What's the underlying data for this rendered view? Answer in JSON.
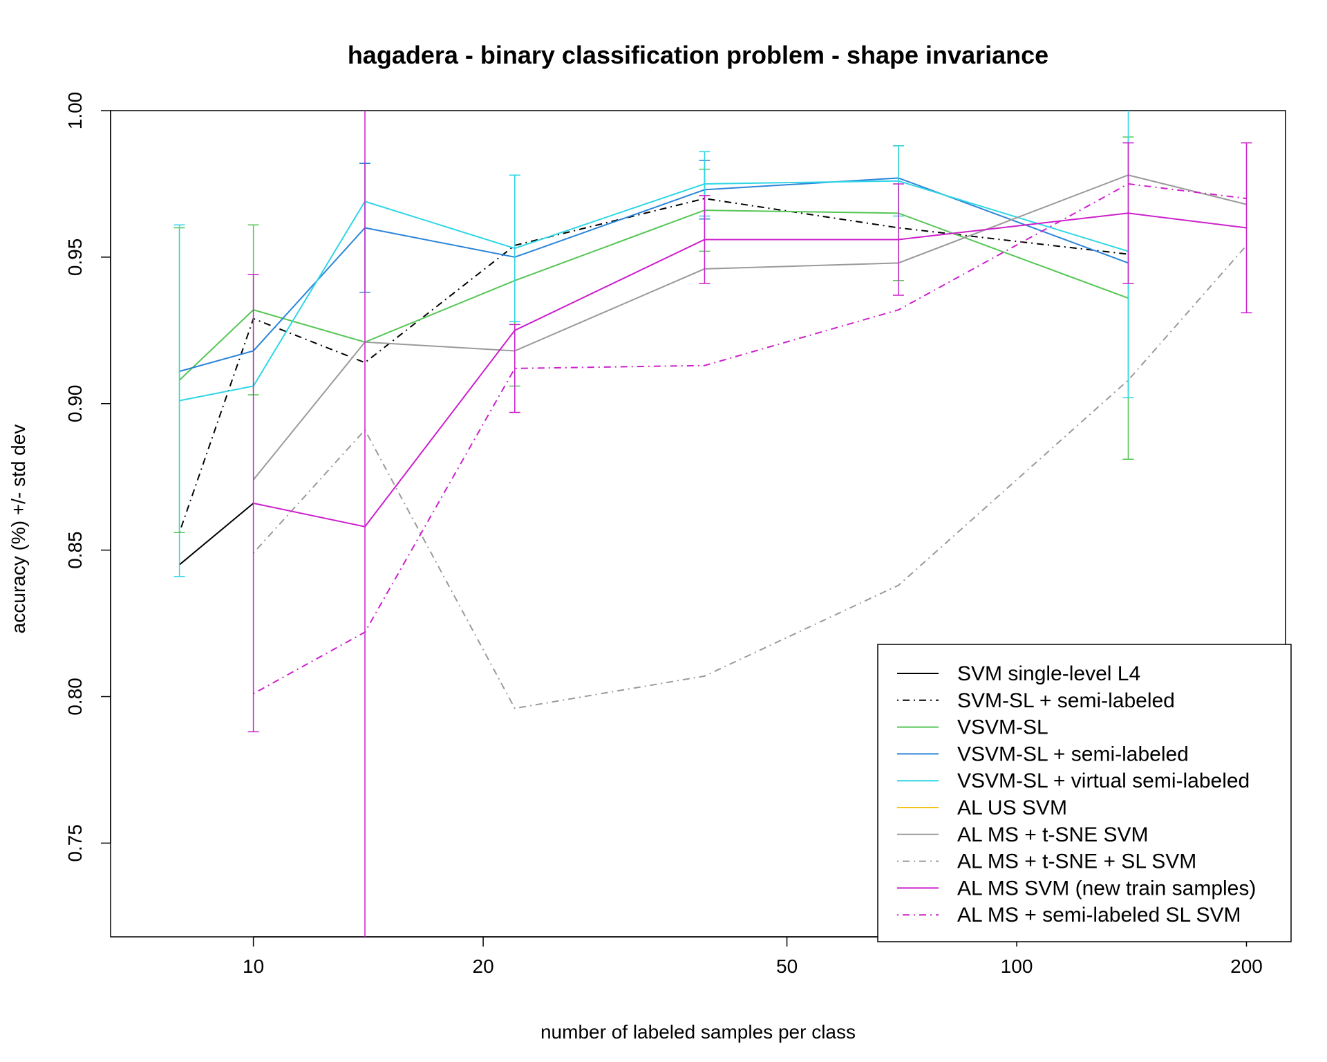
{
  "chart_data": {
    "type": "line",
    "title": "hagadera - binary classification problem - shape invariance",
    "xlabel": "number of labeled samples per class",
    "ylabel": "accuracy (%) +/- std dev",
    "x_scale": "log",
    "xlim": [
      6.5,
      225
    ],
    "ylim": [
      0.718,
      1.0
    ],
    "x_ticks": [
      10,
      20,
      50,
      100,
      200
    ],
    "x_tick_labels": [
      "10",
      "20",
      "50",
      "100",
      "200"
    ],
    "y_ticks": [
      0.75,
      0.8,
      0.85,
      0.9,
      0.95,
      1.0
    ],
    "y_tick_labels": [
      "0.75",
      "0.80",
      "0.85",
      "0.90",
      "0.95",
      "1.00"
    ],
    "grid": false,
    "legend_position": "bottom-right",
    "series": [
      {
        "name": "SVM single-level L4",
        "color": "#000000",
        "dash": "solid",
        "x": [
          8,
          10
        ],
        "y": [
          0.845,
          0.866
        ]
      },
      {
        "name": "SVM-SL + semi-labeled",
        "color": "#000000",
        "dash": "dotdash",
        "x": [
          8,
          10,
          14,
          22,
          39,
          70,
          140
        ],
        "y": [
          0.856,
          0.929,
          0.914,
          0.954,
          0.97,
          0.96,
          0.951
        ]
      },
      {
        "name": "VSVM-SL",
        "color": "#55c655",
        "dash": "solid",
        "x": [
          8,
          10,
          14,
          22,
          39,
          70,
          140
        ],
        "y": [
          0.908,
          0.932,
          0.921,
          0.942,
          0.966,
          0.965,
          0.936
        ],
        "err": [
          0.052,
          0.029,
          0.0,
          0.036,
          0.014,
          0.023,
          0.055
        ]
      },
      {
        "name": "VSVM-SL + semi-labeled",
        "color": "#2b84d9",
        "dash": "solid",
        "x": [
          8,
          10,
          14,
          22,
          39,
          70,
          140
        ],
        "y": [
          0.911,
          0.918,
          0.96,
          0.95,
          0.973,
          0.977,
          0.948
        ],
        "err": [
          0.0,
          0.0,
          0.022,
          0.0,
          0.01,
          0.0,
          0.0
        ]
      },
      {
        "name": "VSVM-SL + virtual semi-labeled",
        "color": "#2ed6e6",
        "dash": "solid",
        "x": [
          8,
          10,
          14,
          22,
          39,
          70,
          140
        ],
        "y": [
          0.901,
          0.906,
          0.969,
          0.953,
          0.975,
          0.976,
          0.952
        ],
        "err": [
          0.06,
          0.0,
          0.0,
          0.025,
          0.011,
          0.012,
          0.05
        ]
      },
      {
        "name": "AL US SVM",
        "color": "#f2c318",
        "dash": "solid",
        "x": [],
        "y": []
      },
      {
        "name": "AL MS + t-SNE SVM",
        "color": "#9a9a9a",
        "dash": "solid",
        "x": [
          10,
          14,
          22,
          39,
          70,
          140,
          200
        ],
        "y": [
          0.874,
          0.921,
          0.918,
          0.946,
          0.948,
          0.978,
          0.968
        ]
      },
      {
        "name": "AL MS + t-SNE + SL SVM",
        "color": "#9a9a9a",
        "dash": "dotdash",
        "x": [
          10,
          14,
          22,
          39,
          70,
          140,
          200
        ],
        "y": [
          0.849,
          0.891,
          0.796,
          0.807,
          0.838,
          0.908,
          0.954
        ]
      },
      {
        "name": "AL MS SVM (new train samples)",
        "color": "#cc1fcc",
        "dash": "solid",
        "x": [
          10,
          14,
          22,
          39,
          70,
          140,
          200
        ],
        "y": [
          0.866,
          0.858,
          0.925,
          0.956,
          0.956,
          0.965,
          0.96
        ],
        "err": [
          0.078,
          0.16,
          0.0,
          0.015,
          0.019,
          0.024,
          0.029
        ]
      },
      {
        "name": "AL MS + semi-labeled SL SVM",
        "color": "#cc1fcc",
        "dash": "dotdash",
        "x": [
          10,
          14,
          22,
          39,
          70,
          140,
          200
        ],
        "y": [
          0.801,
          0.822,
          0.912,
          0.913,
          0.932,
          0.975,
          0.97
        ],
        "err": [
          0.0,
          0.0,
          0.015,
          0.0,
          0.0,
          0.0,
          0.0
        ]
      }
    ]
  }
}
